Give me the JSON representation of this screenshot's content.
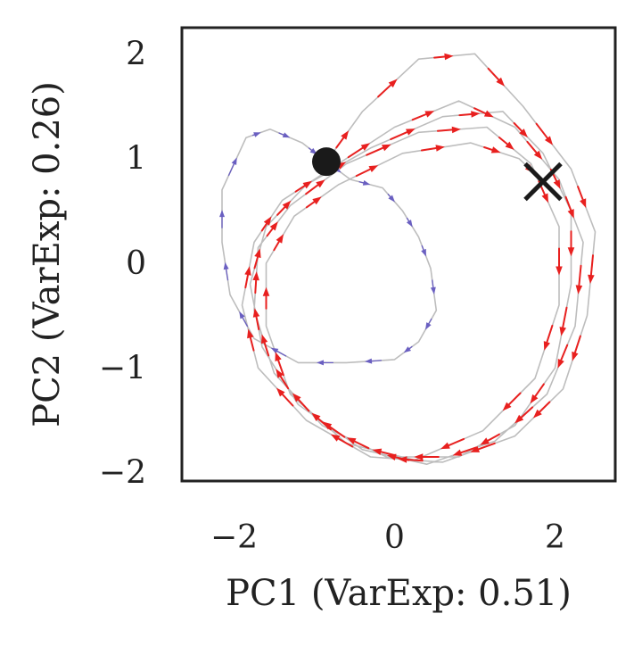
{
  "chart_data": {
    "type": "line",
    "title": "",
    "xlabel": "PC1 (VarExp: 0.51)",
    "ylabel": "PC2 (VarExp: 0.26)",
    "xlim": [
      -2.65,
      2.75
    ],
    "ylim": [
      -2.08,
      2.25
    ],
    "xticks": [
      -2,
      0,
      2
    ],
    "yticks": [
      -2,
      -1,
      0,
      1,
      2
    ],
    "xtick_labels": [
      "−2",
      "0",
      "2"
    ],
    "ytick_labels": [
      "−2",
      "−1",
      "0",
      "1",
      "2"
    ],
    "grid": false,
    "legend": "none",
    "colors": {
      "path": "#bdbdbd",
      "early_arrows": "#6a5fc1",
      "late_arrows": "#e8201f",
      "start_marker": "#1a1a1a",
      "end_marker": "#1a1a1a",
      "axes": "#222222"
    },
    "start_point": {
      "x": -0.85,
      "y": 0.97,
      "marker": "circle"
    },
    "end_point": {
      "x": 1.85,
      "y": 0.78,
      "marker": "x"
    },
    "trajectory": [
      {
        "x": -0.85,
        "y": 0.97
      },
      {
        "x": -0.55,
        "y": 0.8
      },
      {
        "x": -0.15,
        "y": 0.72
      },
      {
        "x": 0.1,
        "y": 0.5
      },
      {
        "x": 0.3,
        "y": 0.25
      },
      {
        "x": 0.45,
        "y": -0.05
      },
      {
        "x": 0.52,
        "y": -0.45
      },
      {
        "x": 0.3,
        "y": -0.75
      },
      {
        "x": 0.0,
        "y": -0.92
      },
      {
        "x": -0.6,
        "y": -0.95
      },
      {
        "x": -1.2,
        "y": -0.95
      },
      {
        "x": -1.75,
        "y": -0.72
      },
      {
        "x": -2.05,
        "y": -0.3
      },
      {
        "x": -2.15,
        "y": 0.2
      },
      {
        "x": -2.15,
        "y": 0.7
      },
      {
        "x": -1.85,
        "y": 1.2
      },
      {
        "x": -1.55,
        "y": 1.28
      },
      {
        "x": -1.15,
        "y": 1.15
      },
      {
        "x": -0.85,
        "y": 0.97
      },
      {
        "x": -0.4,
        "y": 1.45
      },
      {
        "x": 0.3,
        "y": 1.95
      },
      {
        "x": 1.0,
        "y": 2.0
      },
      {
        "x": 1.6,
        "y": 1.5
      },
      {
        "x": 2.2,
        "y": 0.9
      },
      {
        "x": 2.5,
        "y": 0.3
      },
      {
        "x": 2.4,
        "y": -0.5
      },
      {
        "x": 2.1,
        "y": -1.2
      },
      {
        "x": 1.5,
        "y": -1.65
      },
      {
        "x": 0.6,
        "y": -1.9
      },
      {
        "x": -0.3,
        "y": -1.85
      },
      {
        "x": -1.1,
        "y": -1.5
      },
      {
        "x": -1.7,
        "y": -1.0
      },
      {
        "x": -1.9,
        "y": -0.4
      },
      {
        "x": -1.75,
        "y": 0.2
      },
      {
        "x": -1.4,
        "y": 0.6
      },
      {
        "x": -0.8,
        "y": 0.9
      },
      {
        "x": 0.0,
        "y": 1.3
      },
      {
        "x": 0.8,
        "y": 1.55
      },
      {
        "x": 1.5,
        "y": 1.3
      },
      {
        "x": 2.05,
        "y": 0.8
      },
      {
        "x": 2.35,
        "y": 0.2
      },
      {
        "x": 2.25,
        "y": -0.6
      },
      {
        "x": 1.9,
        "y": -1.25
      },
      {
        "x": 1.25,
        "y": -1.7
      },
      {
        "x": 0.4,
        "y": -1.92
      },
      {
        "x": -0.4,
        "y": -1.78
      },
      {
        "x": -1.2,
        "y": -1.35
      },
      {
        "x": -1.65,
        "y": -0.8
      },
      {
        "x": -1.8,
        "y": -0.2
      },
      {
        "x": -1.6,
        "y": 0.35
      },
      {
        "x": -1.1,
        "y": 0.75
      },
      {
        "x": -0.3,
        "y": 1.1
      },
      {
        "x": 0.6,
        "y": 1.4
      },
      {
        "x": 1.35,
        "y": 1.45
      },
      {
        "x": 1.85,
        "y": 1.05
      },
      {
        "x": 2.2,
        "y": 0.5
      },
      {
        "x": 2.2,
        "y": -0.2
      },
      {
        "x": 2.0,
        "y": -1.0
      },
      {
        "x": 1.5,
        "y": -1.55
      },
      {
        "x": 0.8,
        "y": -1.85
      },
      {
        "x": -0.1,
        "y": -1.85
      },
      {
        "x": -0.9,
        "y": -1.55
      },
      {
        "x": -1.5,
        "y": -1.05
      },
      {
        "x": -1.75,
        "y": -0.45
      },
      {
        "x": -1.7,
        "y": 0.15
      },
      {
        "x": -1.3,
        "y": 0.55
      },
      {
        "x": -0.6,
        "y": 0.95
      },
      {
        "x": 0.3,
        "y": 1.25
      },
      {
        "x": 1.15,
        "y": 1.3
      },
      {
        "x": 1.7,
        "y": 0.95
      },
      {
        "x": 2.05,
        "y": 0.35
      },
      {
        "x": 2.05,
        "y": -0.4
      },
      {
        "x": 1.75,
        "y": -1.1
      },
      {
        "x": 1.1,
        "y": -1.6
      },
      {
        "x": 0.25,
        "y": -1.88
      },
      {
        "x": -0.6,
        "y": -1.72
      },
      {
        "x": -1.3,
        "y": -1.25
      },
      {
        "x": -1.6,
        "y": -0.6
      },
      {
        "x": -1.6,
        "y": 0.0
      },
      {
        "x": -1.25,
        "y": 0.45
      },
      {
        "x": -0.7,
        "y": 0.75
      },
      {
        "x": 0.1,
        "y": 1.05
      },
      {
        "x": 0.95,
        "y": 1.15
      },
      {
        "x": 1.55,
        "y": 1.0
      },
      {
        "x": 1.85,
        "y": 0.78
      }
    ],
    "early_segment_count": 18
  }
}
